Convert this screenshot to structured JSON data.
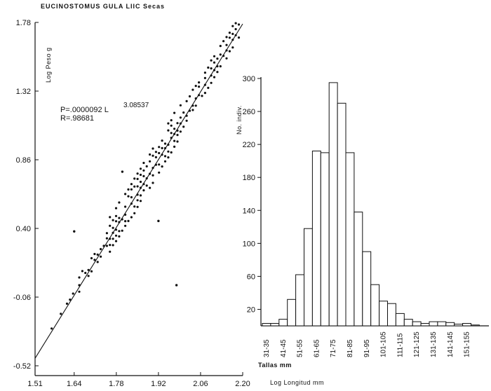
{
  "page_title": "EUCINOSTOMUS  GULA   LIIC  Secas",
  "chart_data": [
    {
      "type": "scatter",
      "ylabel": "Log  Peso  g",
      "xlabel": "Log  Longitud  mm",
      "xlim": [
        1.51,
        2.2
      ],
      "ylim": [
        -0.52,
        1.78
      ],
      "x_ticks": [
        "1.51",
        "1.64",
        "1.78",
        "1.92",
        "2.06",
        "2.20"
      ],
      "y_ticks": [
        "1.78",
        "1.32",
        "0.86",
        "0.40",
        "-0.06",
        "-0.52"
      ],
      "equation_main": "P=.0000092 L",
      "equation_exp": "3.08537",
      "r_value": "R=.98681",
      "fit_line": {
        "x": [
          1.51,
          2.2
        ],
        "y": [
          -0.47,
          1.77
        ]
      },
      "outliers": {
        "x": [
          1.92,
          1.98,
          1.64,
          1.8
        ],
        "y": [
          0.45,
          0.02,
          0.38,
          0.78
        ]
      }
    },
    {
      "type": "bar",
      "ylabel": "No. indiv.",
      "xlabel": "Tallas mm",
      "ylim": [
        0,
        300
      ],
      "y_ticks": [
        "300",
        "260",
        "220",
        "180",
        "140",
        "100",
        "60",
        "20"
      ],
      "categories": [
        "31-35",
        "36-40",
        "41-45",
        "46-50",
        "51-55",
        "56-60",
        "61-65",
        "66-70",
        "71-75",
        "76-80",
        "81-85",
        "86-90",
        "91-95",
        "96-100",
        "101-105",
        "106-110",
        "111-115",
        "116-120",
        "121-125",
        "126-130",
        "131-135",
        "136-140",
        "141-145",
        "146-150",
        "151-155",
        "156-160"
      ],
      "category_labels": [
        "31-35",
        "41-45",
        "51-55",
        "61-65",
        "71-75",
        "81-85",
        "91-95",
        "101-105",
        "111-115",
        "121-125",
        "131-135",
        "141-145",
        "151-155"
      ],
      "values": [
        3,
        3,
        8,
        32,
        62,
        118,
        212,
        210,
        295,
        270,
        210,
        138,
        90,
        50,
        30,
        27,
        15,
        8,
        5,
        3,
        5,
        5,
        4,
        2,
        3,
        1
      ]
    }
  ]
}
